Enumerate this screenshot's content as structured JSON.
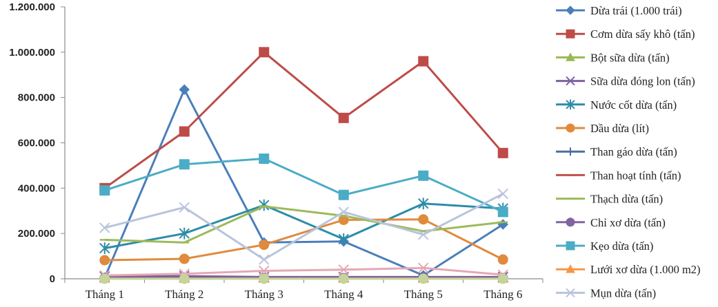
{
  "chart_data": {
    "type": "line",
    "title": "",
    "xlabel": "",
    "ylabel": "",
    "categories": [
      "Tháng 1",
      "Tháng 2",
      "Tháng 3",
      "Tháng 4",
      "Tháng 5",
      "Tháng 6"
    ],
    "ylim": [
      0,
      1200000
    ],
    "yticks": [
      0,
      200000,
      400000,
      600000,
      800000,
      1000000,
      1200000
    ],
    "ytick_labels": [
      "0",
      "200.000",
      "400.000",
      "600.000",
      "800.000",
      "1.000.000",
      "1.200.000"
    ],
    "grid": false,
    "legend_position": "right",
    "series": [
      {
        "name": "Dừa trái (1.000 trái)",
        "color": "#4a7ebb",
        "marker": "diamond",
        "values": [
          5000,
          835000,
          160000,
          165000,
          15000,
          240000
        ]
      },
      {
        "name": "Cơm dừa sấy khô (tấn)",
        "color": "#be4b48",
        "marker": "square",
        "values": [
          400000,
          650000,
          1000000,
          710000,
          960000,
          555000
        ]
      },
      {
        "name": "Bột sữa dừa (tấn)",
        "color": "#98b954",
        "marker": "triangle",
        "values": [
          3000,
          3000,
          3000,
          3000,
          3000,
          3000
        ]
      },
      {
        "name": "Sữa dừa đóng lon (tấn)",
        "color": "#7d60a0",
        "marker": "x",
        "values": [
          10000,
          12000,
          8000,
          8000,
          8000,
          8000
        ]
      },
      {
        "name": "Nước cốt dừa (tấn)",
        "color": "#2c8ca8",
        "marker": "star",
        "values": [
          135000,
          200000,
          325000,
          175000,
          332000,
          310000
        ]
      },
      {
        "name": "Dầu dừa  (lít)",
        "color": "#e08a3c",
        "marker": "circle",
        "values": [
          82000,
          88000,
          150000,
          260000,
          262000,
          85000
        ]
      },
      {
        "name": "Than gáo dừa (tấn)",
        "color": "#4a6fa0",
        "marker": "plus",
        "values": [
          3000,
          3000,
          3000,
          3000,
          3000,
          3000
        ]
      },
      {
        "name": "Than hoạt tính (tấn)",
        "color": "#c0504d",
        "marker": "dash",
        "values": [
          2000,
          2000,
          2000,
          2000,
          2000,
          2000
        ]
      },
      {
        "name": "Thạch dừa (tấn)",
        "color": "#9bbb59",
        "marker": "dash",
        "values": [
          172000,
          160000,
          320000,
          278000,
          210000,
          250000
        ]
      },
      {
        "name": "Chỉ xơ dừa (tấn)",
        "color": "#8064a2",
        "marker": "circle",
        "values": [
          3000,
          3000,
          3000,
          3000,
          3000,
          3000
        ]
      },
      {
        "name": "Kẹo dừa  (tấn)",
        "color": "#4bacc6",
        "marker": "square",
        "values": [
          390000,
          505000,
          530000,
          370000,
          455000,
          295000
        ]
      },
      {
        "name": "Lưới xơ dừa (1.000 m2)",
        "color": "#f79646",
        "marker": "triangle",
        "values": [
          1000,
          1000,
          1000,
          1000,
          1000,
          1000
        ]
      },
      {
        "name": "Mụn dừa (tấn)",
        "color": "#b8c4dc",
        "marker": "x",
        "values": [
          225000,
          315000,
          85000,
          295000,
          195000,
          375000
        ]
      },
      {
        "name": "",
        "color": "#e4a8b4",
        "marker": "x",
        "values": [
          15000,
          22000,
          35000,
          40000,
          48000,
          18000
        ]
      },
      {
        "name": "",
        "color": "#c4d49a",
        "marker": "circle",
        "values": [
          0,
          0,
          0,
          0,
          0,
          0
        ]
      }
    ]
  }
}
